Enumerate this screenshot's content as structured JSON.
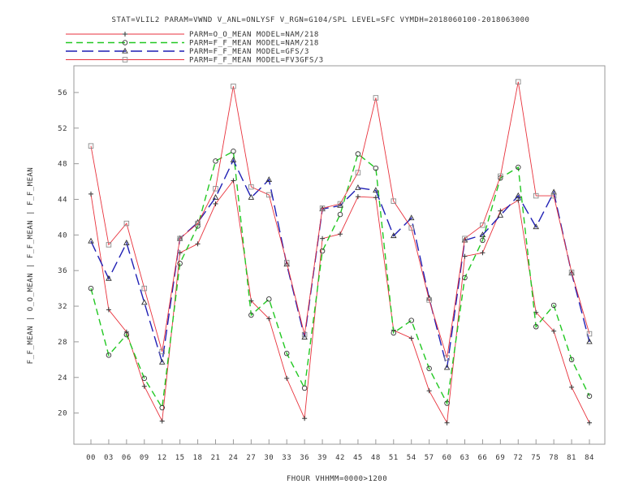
{
  "chart_data": {
    "type": "line",
    "title": "STAT=VLIL2 PARAM=VWND V_ANL=ONLYSF V_RGN=G104/SPL LEVEL=SFC VYMDH=2018060100-2018063000",
    "xlabel": "FHOUR VHHMM=0000>1200",
    "ylabel": "F_F_MEAN | O_O_MEAN | F_F_MEAN | F_F_MEAN",
    "categories": [
      "00",
      "03",
      "06",
      "09",
      "12",
      "15",
      "18",
      "21",
      "24",
      "27",
      "30",
      "33",
      "36",
      "39",
      "42",
      "45",
      "48",
      "51",
      "54",
      "57",
      "60",
      "63",
      "66",
      "69",
      "72",
      "75",
      "78",
      "81",
      "84"
    ],
    "yticks": [
      20,
      24,
      28,
      32,
      36,
      40,
      44,
      48,
      52,
      56
    ],
    "ylim": [
      16.5,
      59.0
    ],
    "grid": false,
    "legend_position": "top-left",
    "series": [
      {
        "name": "PARM=O_O_MEAN MODEL=NAM/218",
        "color": "#e8323c",
        "dash": "solid",
        "marker": "plus",
        "values": [
          44.6,
          31.6,
          29.1,
          23.0,
          19.1,
          38.0,
          39.0,
          43.5,
          46.1,
          32.6,
          30.6,
          23.9,
          19.4,
          39.6,
          40.1,
          44.3,
          44.2,
          29.3,
          28.4,
          22.5,
          18.9,
          37.6,
          38.0,
          42.7,
          43.9,
          31.3,
          29.2,
          22.9,
          18.9
        ]
      },
      {
        "name": "PARM=F_F_MEAN MODEL=NAM/218",
        "color": "#22c822",
        "dash": "8,5",
        "marker": "circle",
        "values": [
          34.0,
          26.5,
          28.8,
          23.9,
          20.6,
          36.8,
          41.0,
          48.3,
          49.4,
          31.0,
          32.8,
          26.7,
          22.8,
          38.2,
          42.3,
          49.1,
          47.5,
          29.0,
          30.4,
          25.0,
          21.1,
          35.2,
          39.4,
          46.4,
          47.6,
          29.7,
          32.1,
          26.0,
          21.9
        ]
      },
      {
        "name": "PARM=F_F_MEAN MODEL=GFS/3",
        "color": "#1f1fb4",
        "dash": "14,6",
        "marker": "triangle",
        "values": [
          39.3,
          35.1,
          39.1,
          32.4,
          25.7,
          39.6,
          41.4,
          44.2,
          48.4,
          44.2,
          46.2,
          36.7,
          28.5,
          42.9,
          43.3,
          45.3,
          45.0,
          39.9,
          41.9,
          32.9,
          25.1,
          39.4,
          40.0,
          42.2,
          44.4,
          40.9,
          44.8,
          35.7,
          28.0
        ]
      },
      {
        "name": "PARM=F_F_MEAN MODEL=FV3GFS/3",
        "color": "#e8323c",
        "dash": "solid",
        "marker": "square",
        "values": [
          50.0,
          38.9,
          41.3,
          34.0,
          26.9,
          39.6,
          41.3,
          45.2,
          56.7,
          45.4,
          44.5,
          36.9,
          28.8,
          43.0,
          43.5,
          47.0,
          55.4,
          43.8,
          40.8,
          32.7,
          26.2,
          39.6,
          41.1,
          46.6,
          57.2,
          44.4,
          44.4,
          35.8,
          28.9
        ]
      }
    ]
  }
}
